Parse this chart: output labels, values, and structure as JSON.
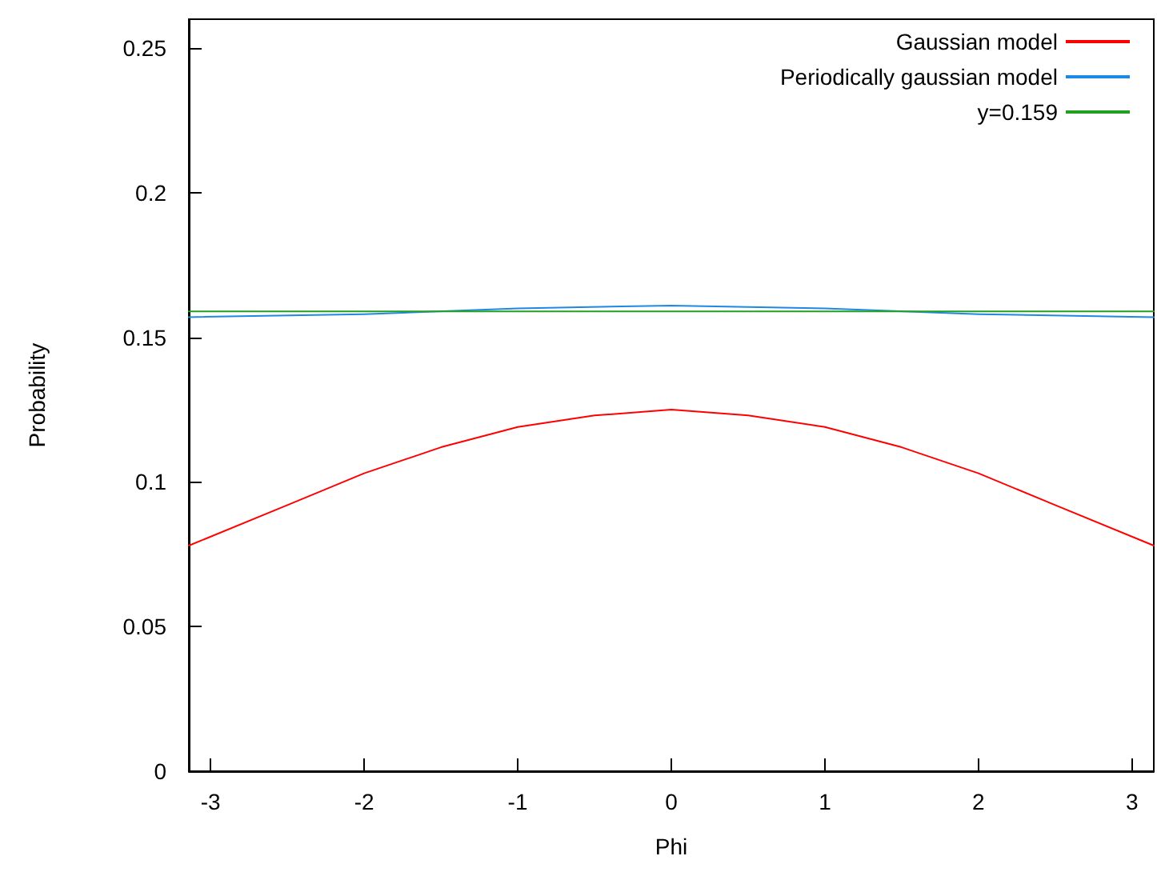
{
  "chart_data": {
    "type": "line",
    "xlabel": "Phi",
    "ylabel": "Probability",
    "xlim": [
      -3.14159,
      3.14159
    ],
    "xticks": [
      -3,
      -2,
      -1,
      0,
      1,
      2,
      3
    ],
    "ylim": [
      0,
      0.26
    ],
    "yticks": [
      0,
      0.05,
      0.1,
      0.15,
      0.2,
      0.25
    ],
    "grid": false,
    "legend": "top right",
    "marker": "none",
    "line_style": "solid",
    "series": [
      {
        "name": "Gaussian model",
        "color": "#ff0000",
        "x": [
          -3.14159,
          -2.5,
          -2,
          -1.5,
          -1,
          -0.5,
          0,
          0.5,
          1,
          1.5,
          2,
          2.5,
          3.14159
        ],
        "values": [
          0.078,
          0.092,
          0.103,
          0.112,
          0.119,
          0.123,
          0.125,
          0.123,
          0.119,
          0.112,
          0.103,
          0.092,
          0.078
        ]
      },
      {
        "name": "Periodically gaussian model",
        "color": "#1e88e5",
        "x": [
          -3.14159,
          -2,
          -1,
          0,
          1,
          2,
          3.14159
        ],
        "values": [
          0.157,
          0.158,
          0.16,
          0.161,
          0.16,
          0.158,
          0.157
        ]
      },
      {
        "name": "y=0.159",
        "color": "#22a022",
        "x": [
          -3.14159,
          3.14159
        ],
        "values": [
          0.159,
          0.159
        ]
      }
    ]
  }
}
